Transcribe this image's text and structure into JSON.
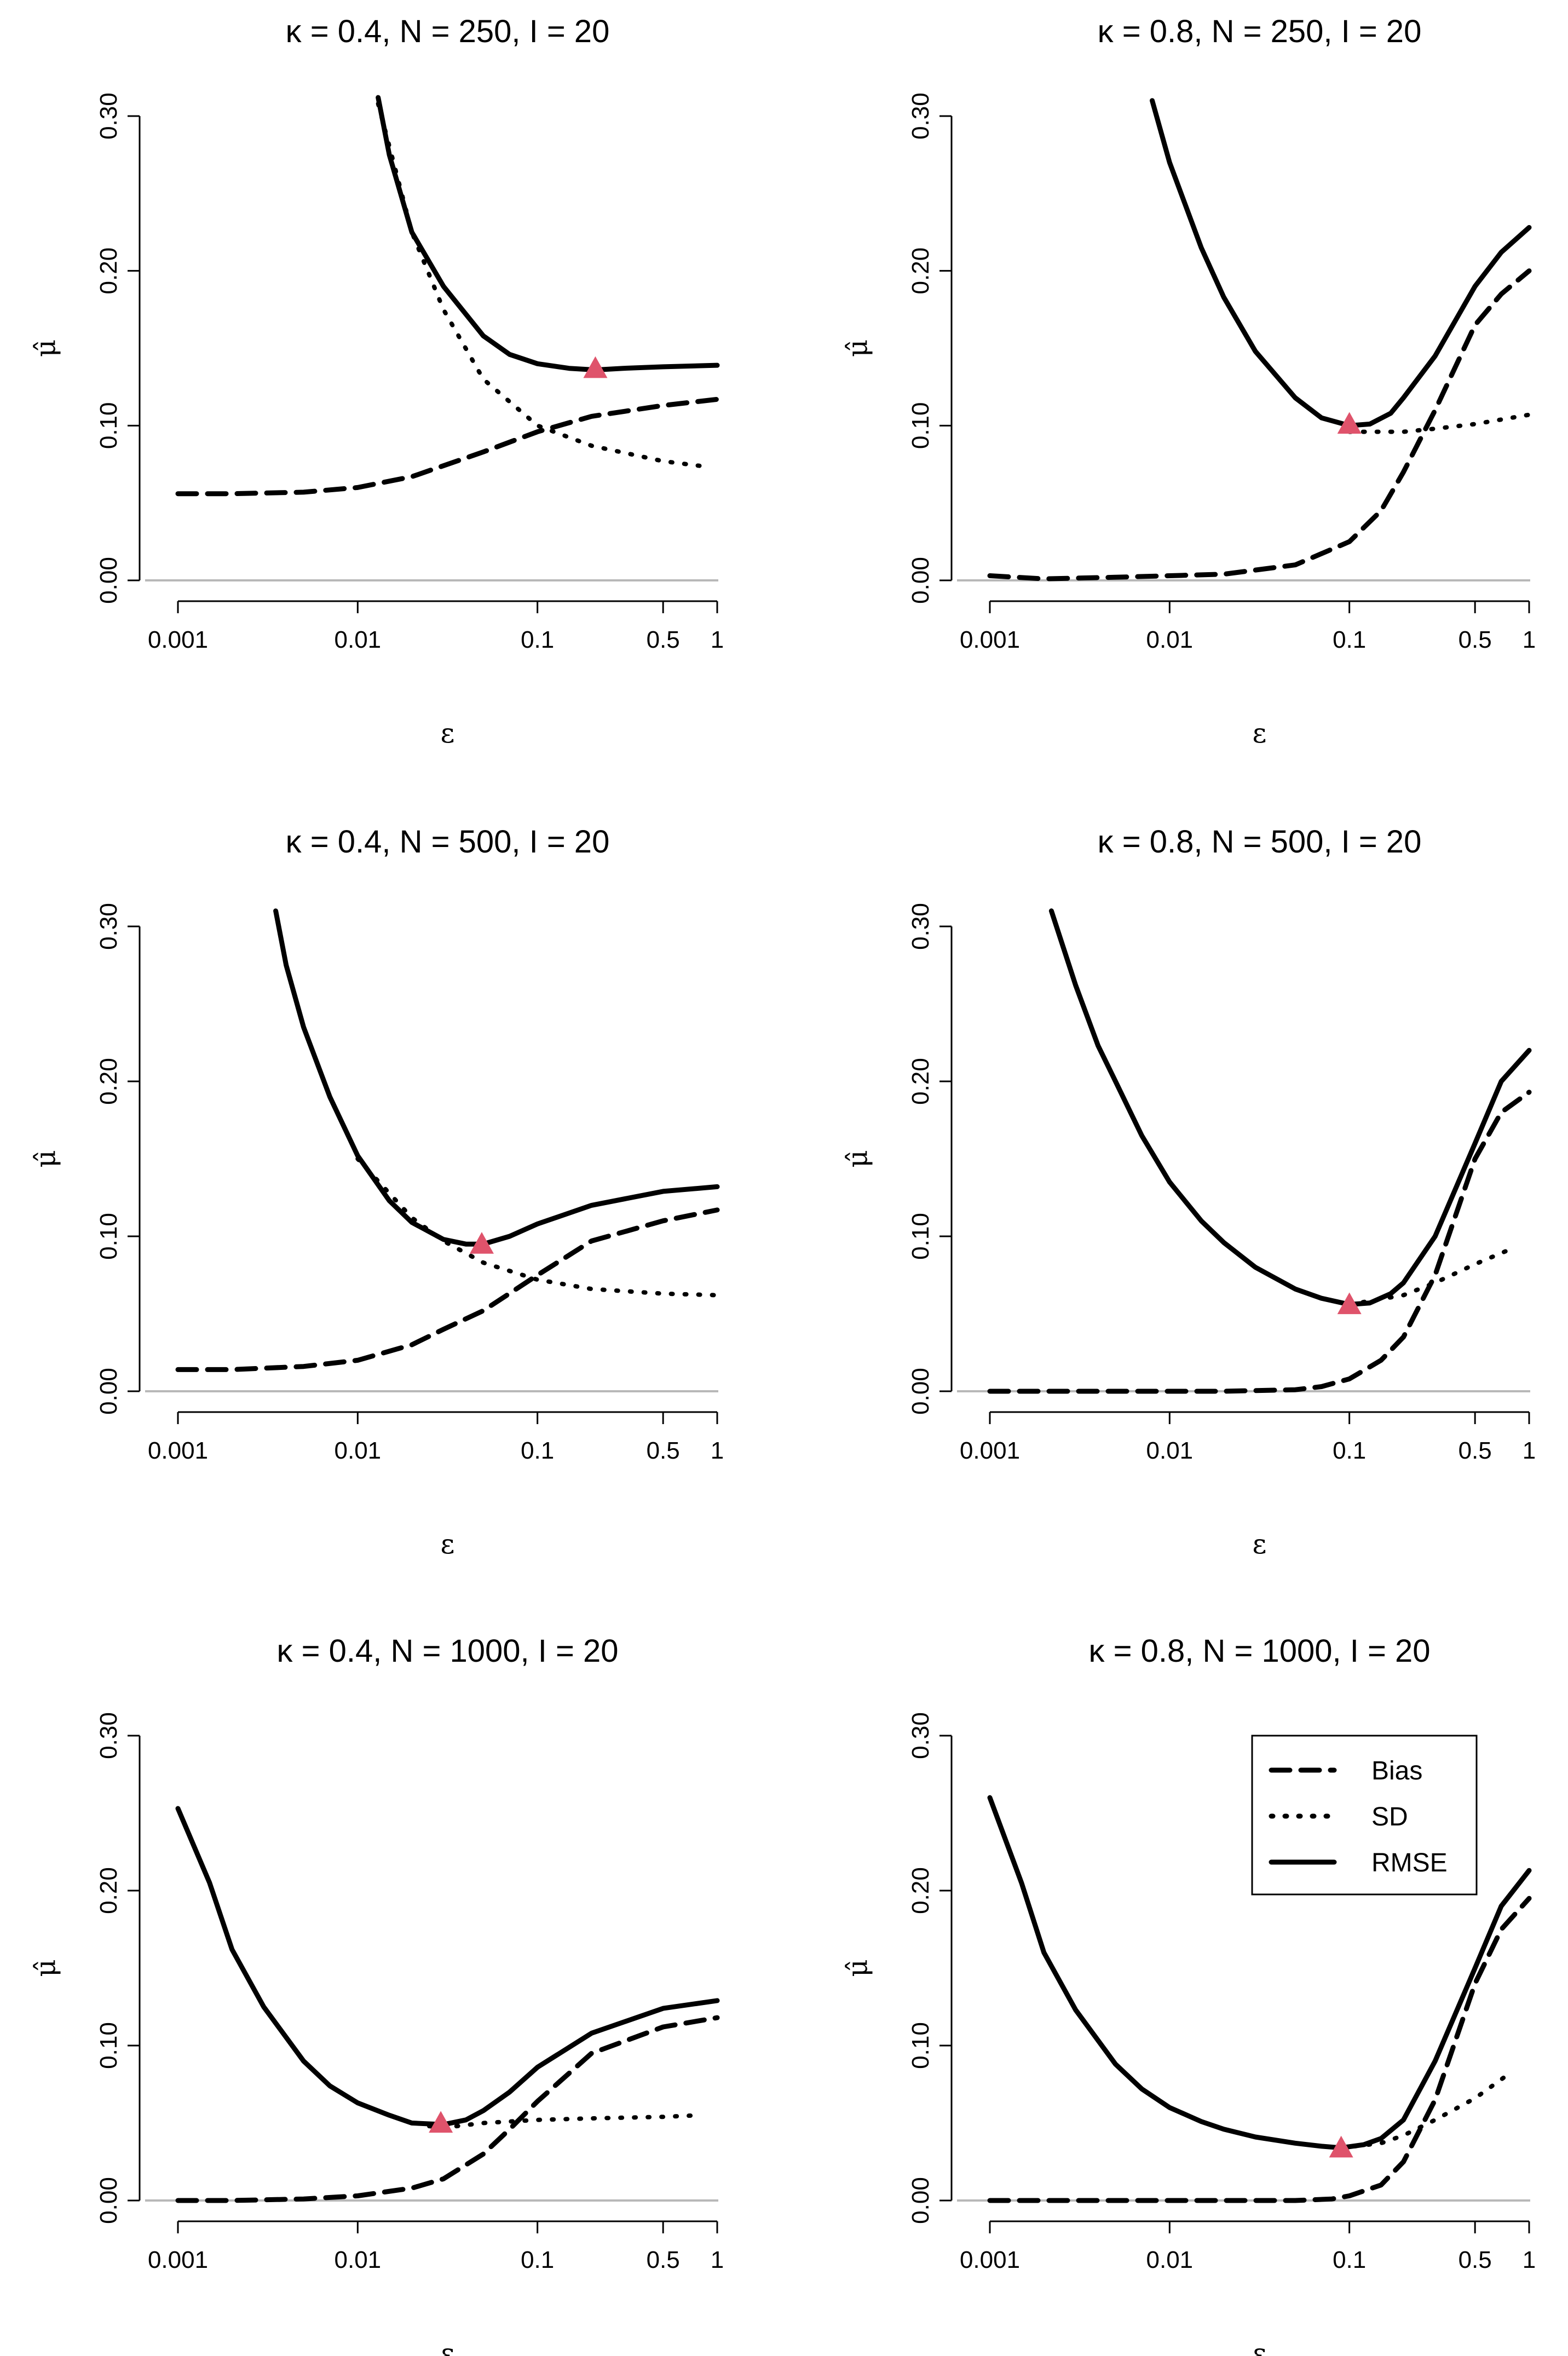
{
  "chart_data": [
    {
      "type": "line",
      "title": "κ = 0.4, N = 250, I = 20",
      "xlabel": "ε",
      "ylabel": "μ̂",
      "xscale": "log",
      "x_ticks": [
        0.001,
        0.01,
        0.1,
        0.5,
        1
      ],
      "x_tick_labels": [
        "0.001",
        "0.01",
        "0.1",
        "0.5",
        "1"
      ],
      "ylim": [
        0,
        0.3
      ],
      "y_ticks": [
        0,
        0.1,
        0.2,
        0.3
      ],
      "y_tick_labels": [
        "0.00",
        "0.10",
        "0.20",
        "0.30"
      ],
      "hline": 0,
      "series": [
        {
          "name": "Bias",
          "style": "dashed",
          "x": [
            0.001,
            0.002,
            0.005,
            0.01,
            0.02,
            0.05,
            0.1,
            0.2,
            0.5,
            1
          ],
          "values": [
            0.056,
            0.056,
            0.057,
            0.06,
            0.067,
            0.083,
            0.096,
            0.106,
            0.113,
            0.117
          ]
        },
        {
          "name": "SD",
          "style": "dotted",
          "x": [
            0.013,
            0.02,
            0.03,
            0.05,
            0.1,
            0.2,
            0.5,
            0.8
          ],
          "values": [
            0.308,
            0.225,
            0.175,
            0.13,
            0.1,
            0.087,
            0.077,
            0.074
          ]
        },
        {
          "name": "RMSE",
          "style": "solid",
          "x": [
            0.013,
            0.015,
            0.02,
            0.03,
            0.05,
            0.07,
            0.1,
            0.15,
            0.21,
            0.3,
            0.5,
            1
          ],
          "values": [
            0.312,
            0.275,
            0.225,
            0.19,
            0.158,
            0.146,
            0.14,
            0.137,
            0.136,
            0.137,
            0.138,
            0.139
          ]
        }
      ],
      "optimum": {
        "x": 0.21,
        "y": 0.137,
        "color": "#DF536B"
      }
    },
    {
      "type": "line",
      "title": "κ = 0.8, N = 250, I = 20",
      "xlabel": "ε",
      "ylabel": "μ̂",
      "xscale": "log",
      "x_ticks": [
        0.001,
        0.01,
        0.1,
        0.5,
        1
      ],
      "x_tick_labels": [
        "0.001",
        "0.01",
        "0.1",
        "0.5",
        "1"
      ],
      "ylim": [
        0,
        0.3
      ],
      "y_ticks": [
        0,
        0.1,
        0.2,
        0.3
      ],
      "y_tick_labels": [
        "0.00",
        "0.10",
        "0.20",
        "0.30"
      ],
      "hline": 0,
      "series": [
        {
          "name": "Bias",
          "style": "dashed",
          "x": [
            0.001,
            0.002,
            0.005,
            0.01,
            0.02,
            0.05,
            0.1,
            0.15,
            0.2,
            0.3,
            0.5,
            0.7,
            1
          ],
          "values": [
            0.003,
            0.001,
            0.002,
            0.003,
            0.004,
            0.01,
            0.025,
            0.045,
            0.07,
            0.11,
            0.165,
            0.185,
            0.2
          ]
        },
        {
          "name": "SD",
          "style": "dotted",
          "x": [
            0.1,
            0.2,
            0.3,
            0.5,
            1
          ],
          "values": [
            0.096,
            0.096,
            0.098,
            0.101,
            0.107
          ]
        },
        {
          "name": "RMSE",
          "style": "solid",
          "x": [
            0.008,
            0.01,
            0.015,
            0.02,
            0.03,
            0.05,
            0.07,
            0.1,
            0.13,
            0.17,
            0.2,
            0.3,
            0.5,
            0.7,
            1
          ],
          "values": [
            0.31,
            0.27,
            0.215,
            0.183,
            0.148,
            0.118,
            0.105,
            0.1,
            0.101,
            0.108,
            0.118,
            0.145,
            0.19,
            0.212,
            0.228
          ]
        }
      ],
      "optimum": {
        "x": 0.1,
        "y": 0.101,
        "color": "#DF536B"
      }
    },
    {
      "type": "line",
      "title": "κ = 0.4, N = 500, I = 20",
      "xlabel": "ε",
      "ylabel": "μ̂",
      "xscale": "log",
      "x_ticks": [
        0.001,
        0.01,
        0.1,
        0.5,
        1
      ],
      "x_tick_labels": [
        "0.001",
        "0.01",
        "0.1",
        "0.5",
        "1"
      ],
      "ylim": [
        0,
        0.3
      ],
      "y_ticks": [
        0,
        0.1,
        0.2,
        0.3
      ],
      "y_tick_labels": [
        "0.00",
        "0.10",
        "0.20",
        "0.30"
      ],
      "hline": 0,
      "series": [
        {
          "name": "Bias",
          "style": "dashed",
          "x": [
            0.001,
            0.002,
            0.005,
            0.01,
            0.02,
            0.03,
            0.05,
            0.1,
            0.2,
            0.5,
            1
          ],
          "values": [
            0.014,
            0.014,
            0.016,
            0.02,
            0.03,
            0.04,
            0.052,
            0.075,
            0.097,
            0.11,
            0.117
          ]
        },
        {
          "name": "SD",
          "style": "dotted",
          "x": [
            0.01,
            0.02,
            0.03,
            0.05,
            0.1,
            0.2,
            0.5,
            1
          ],
          "values": [
            0.15,
            0.112,
            0.097,
            0.083,
            0.072,
            0.066,
            0.063,
            0.062
          ]
        },
        {
          "name": "RMSE",
          "style": "solid",
          "x": [
            0.0035,
            0.004,
            0.005,
            0.007,
            0.01,
            0.015,
            0.02,
            0.03,
            0.04,
            0.05,
            0.07,
            0.1,
            0.2,
            0.5,
            1
          ],
          "values": [
            0.31,
            0.275,
            0.235,
            0.19,
            0.152,
            0.123,
            0.109,
            0.098,
            0.095,
            0.095,
            0.1,
            0.108,
            0.12,
            0.129,
            0.132
          ]
        }
      ],
      "optimum": {
        "x": 0.049,
        "y": 0.095,
        "color": "#DF536B"
      }
    },
    {
      "type": "line",
      "title": "κ = 0.8, N = 500, I = 20",
      "xlabel": "ε",
      "ylabel": "μ̂",
      "xscale": "log",
      "x_ticks": [
        0.001,
        0.01,
        0.1,
        0.5,
        1
      ],
      "x_tick_labels": [
        "0.001",
        "0.01",
        "0.1",
        "0.5",
        "1"
      ],
      "ylim": [
        0,
        0.3
      ],
      "y_ticks": [
        0,
        0.1,
        0.2,
        0.3
      ],
      "y_tick_labels": [
        "0.00",
        "0.10",
        "0.20",
        "0.30"
      ],
      "hline": 0,
      "series": [
        {
          "name": "Bias",
          "style": "dashed",
          "x": [
            0.001,
            0.005,
            0.01,
            0.02,
            0.05,
            0.07,
            0.1,
            0.15,
            0.2,
            0.3,
            0.5,
            0.7,
            1
          ],
          "values": [
            0.0,
            0.0,
            0.0,
            0.0,
            0.001,
            0.003,
            0.008,
            0.02,
            0.035,
            0.075,
            0.15,
            0.18,
            0.193
          ]
        },
        {
          "name": "SD",
          "style": "dotted",
          "x": [
            0.1,
            0.2,
            0.3,
            0.5,
            0.8
          ],
          "values": [
            0.056,
            0.062,
            0.07,
            0.082,
            0.092
          ]
        },
        {
          "name": "RMSE",
          "style": "solid",
          "x": [
            0.0022,
            0.003,
            0.004,
            0.005,
            0.007,
            0.01,
            0.015,
            0.02,
            0.03,
            0.05,
            0.07,
            0.1,
            0.13,
            0.17,
            0.2,
            0.3,
            0.5,
            0.7,
            1
          ],
          "values": [
            0.31,
            0.262,
            0.223,
            0.2,
            0.165,
            0.135,
            0.11,
            0.096,
            0.08,
            0.066,
            0.06,
            0.056,
            0.057,
            0.063,
            0.07,
            0.1,
            0.16,
            0.2,
            0.22
          ]
        }
      ],
      "optimum": {
        "x": 0.1,
        "y": 0.056,
        "color": "#DF536B"
      }
    },
    {
      "type": "line",
      "title": "κ = 0.4, N = 1000, I = 20",
      "xlabel": "ε",
      "ylabel": "μ̂",
      "xscale": "log",
      "x_ticks": [
        0.001,
        0.01,
        0.1,
        0.5,
        1
      ],
      "x_tick_labels": [
        "0.001",
        "0.01",
        "0.1",
        "0.5",
        "1"
      ],
      "ylim": [
        0,
        0.3
      ],
      "y_ticks": [
        0,
        0.1,
        0.2,
        0.3
      ],
      "y_tick_labels": [
        "0.00",
        "0.10",
        "0.20",
        "0.30"
      ],
      "hline": 0,
      "series": [
        {
          "name": "Bias",
          "style": "dashed",
          "x": [
            0.001,
            0.002,
            0.005,
            0.01,
            0.02,
            0.03,
            0.05,
            0.07,
            0.1,
            0.2,
            0.5,
            1
          ],
          "values": [
            0.0,
            0.0,
            0.001,
            0.003,
            0.008,
            0.014,
            0.03,
            0.046,
            0.064,
            0.095,
            0.112,
            0.118
          ]
        },
        {
          "name": "SD",
          "style": "dotted",
          "x": [
            0.025,
            0.03,
            0.05,
            0.1,
            0.2,
            0.5,
            0.8
          ],
          "values": [
            0.048,
            0.047,
            0.05,
            0.052,
            0.053,
            0.054,
            0.055
          ]
        },
        {
          "name": "RMSE",
          "style": "solid",
          "x": [
            0.001,
            0.0015,
            0.002,
            0.003,
            0.005,
            0.007,
            0.01,
            0.015,
            0.02,
            0.03,
            0.04,
            0.05,
            0.07,
            0.1,
            0.2,
            0.5,
            1
          ],
          "values": [
            0.253,
            0.205,
            0.162,
            0.125,
            0.09,
            0.074,
            0.063,
            0.055,
            0.05,
            0.049,
            0.052,
            0.058,
            0.07,
            0.086,
            0.108,
            0.124,
            0.129
          ]
        }
      ],
      "optimum": {
        "x": 0.029,
        "y": 0.05,
        "color": "#DF536B"
      }
    },
    {
      "type": "line",
      "title": "κ = 0.8, N = 1000, I = 20",
      "xlabel": "ε",
      "ylabel": "μ̂",
      "xscale": "log",
      "x_ticks": [
        0.001,
        0.01,
        0.1,
        0.5,
        1
      ],
      "x_tick_labels": [
        "0.001",
        "0.01",
        "0.1",
        "0.5",
        "1"
      ],
      "ylim": [
        0,
        0.3
      ],
      "y_ticks": [
        0,
        0.1,
        0.2,
        0.3
      ],
      "y_tick_labels": [
        "0.00",
        "0.10",
        "0.20",
        "0.30"
      ],
      "hline": 0,
      "series": [
        {
          "name": "Bias",
          "style": "dashed",
          "x": [
            0.001,
            0.005,
            0.01,
            0.02,
            0.05,
            0.08,
            0.1,
            0.15,
            0.2,
            0.3,
            0.5,
            0.7,
            1
          ],
          "values": [
            0.0,
            0.0,
            0.0,
            0.0,
            0.0,
            0.001,
            0.003,
            0.01,
            0.025,
            0.065,
            0.14,
            0.175,
            0.195
          ]
        },
        {
          "name": "SD",
          "style": "dotted",
          "x": [
            0.09,
            0.15,
            0.2,
            0.3,
            0.5,
            0.8
          ],
          "values": [
            0.034,
            0.037,
            0.042,
            0.052,
            0.066,
            0.083
          ]
        },
        {
          "name": "RMSE",
          "style": "solid",
          "x": [
            0.001,
            0.0015,
            0.002,
            0.003,
            0.005,
            0.007,
            0.01,
            0.015,
            0.02,
            0.03,
            0.05,
            0.07,
            0.09,
            0.12,
            0.15,
            0.2,
            0.3,
            0.5,
            0.7,
            1
          ],
          "values": [
            0.26,
            0.205,
            0.16,
            0.123,
            0.088,
            0.072,
            0.06,
            0.051,
            0.046,
            0.041,
            0.037,
            0.035,
            0.034,
            0.036,
            0.04,
            0.052,
            0.09,
            0.15,
            0.19,
            0.213
          ]
        }
      ],
      "optimum": {
        "x": 0.09,
        "y": 0.034,
        "color": "#DF536B"
      }
    }
  ],
  "legend": {
    "placement": "top-right of bottom-right panel",
    "entries": [
      {
        "label": "Bias",
        "style": "dashed"
      },
      {
        "label": "SD",
        "style": "dotted"
      },
      {
        "label": "RMSE",
        "style": "solid"
      }
    ]
  }
}
